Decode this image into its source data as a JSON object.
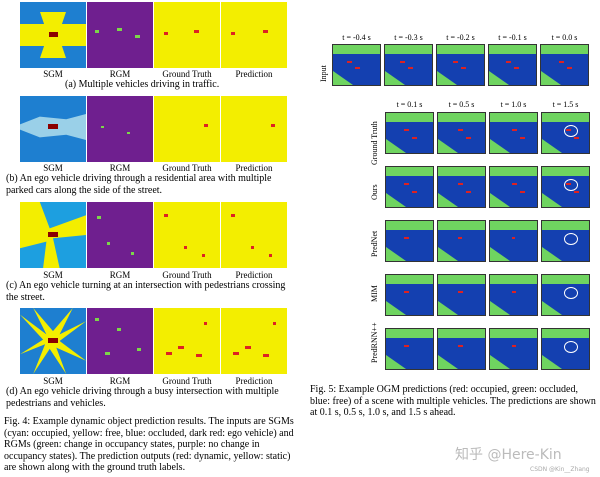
{
  "fig4": {
    "panel_labels": [
      "SGM",
      "RGM",
      "Ground Truth",
      "Prediction"
    ],
    "subcaptions": [
      "(a) Multiple vehicles driving in traffic.",
      "(b) An ego vehicle driving through a residential area with multiple parked cars along the side of the street.",
      "(c) An ego vehicle turning at an intersection with pedestrians crossing the street.",
      "(d) An ego vehicle driving through a busy intersection with multiple pedestrians and vehicles."
    ],
    "caption": "Fig. 4: Example dynamic object prediction results. The inputs are SGMs (cyan: occupied, yellow: free, blue: occluded, dark red: ego vehicle) and RGMs (green: change in occupancy states, purple: no change in occupancy states). The prediction outputs (red: dynamic, yellow: static) are shown along with the ground truth labels."
  },
  "fig5": {
    "input_times": [
      "t = -0.4 s",
      "t = -0.3 s",
      "t = -0.2 s",
      "t = -0.1 s",
      "t = 0.0 s"
    ],
    "output_times": [
      "t = 0.1 s",
      "t = 0.5 s",
      "t = 1.0 s",
      "t = 1.5 s"
    ],
    "input_label": "Input",
    "row_labels": [
      "Ground Truth",
      "Ours",
      "PredNet",
      "MIM",
      "PredRNN++"
    ],
    "caption": "Fig. 5: Example OGM predictions (red: occupied, green: occluded, blue: free) of a scene with multiple vehicles. The predictions are shown at 0.1 s, 0.5 s, 1.0 s, and 1.5 s ahead."
  },
  "watermark": "知乎 @Here-Kin",
  "credit": "CSDN @Kin__Zhang"
}
